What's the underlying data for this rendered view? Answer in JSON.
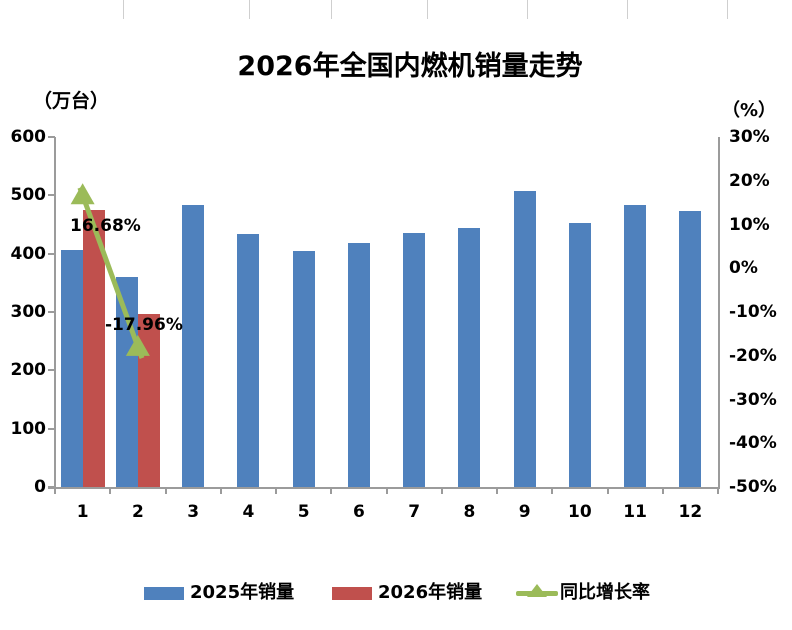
{
  "title": "2026年全国内燃机销量走势",
  "axes": {
    "left_unit": "（万台）",
    "right_unit": "（%）",
    "left_ticks": [
      "600",
      "500",
      "400",
      "300",
      "200",
      "100",
      "0"
    ],
    "right_ticks": [
      "30%",
      "20%",
      "10%",
      "0%",
      "-10%",
      "-20%",
      "-30%",
      "-40%",
      "-50%"
    ],
    "x_ticks": [
      "1",
      "2",
      "3",
      "4",
      "5",
      "6",
      "7",
      "8",
      "9",
      "10",
      "11",
      "12"
    ]
  },
  "legend": [
    {
      "label": "2025年销量",
      "swatch": "bar",
      "color": "#4F81BD"
    },
    {
      "label": "2026年销量",
      "swatch": "bar",
      "color": "#C0504D"
    },
    {
      "label": "同比增长率",
      "swatch": "line-triangle",
      "color": "#9BBB59"
    }
  ],
  "annotations": [
    {
      "text": "16.68%",
      "series": "同比增长率",
      "month": "1",
      "value": 16.68
    },
    {
      "text": "-17.96%",
      "series": "同比增长率",
      "month": "2",
      "value": -17.96
    }
  ],
  "colors": {
    "bar_2025": "#4F81BD",
    "bar_2026": "#C0504D",
    "line_growth": "#9BBB59",
    "axis": "#9B9B9B"
  },
  "chart_data": {
    "type": "combo",
    "title": "2026年全国内燃机销量走势",
    "categories": [
      "1",
      "2",
      "3",
      "4",
      "5",
      "6",
      "7",
      "8",
      "9",
      "10",
      "11",
      "12"
    ],
    "series": [
      {
        "name": "2025年销量",
        "type": "bar",
        "axis": "left",
        "color": "#4F81BD",
        "values": [
          407,
          360,
          483,
          434,
          404,
          419,
          436,
          444,
          507,
          453,
          483,
          474
        ]
      },
      {
        "name": "2026年销量",
        "type": "bar",
        "axis": "left",
        "color": "#C0504D",
        "values": [
          475,
          296,
          null,
          null,
          null,
          null,
          null,
          null,
          null,
          null,
          null,
          null
        ]
      },
      {
        "name": "同比增长率",
        "type": "line",
        "axis": "right",
        "unit": "%",
        "color": "#9BBB59",
        "values": [
          16.68,
          -17.96,
          null,
          null,
          null,
          null,
          null,
          null,
          null,
          null,
          null,
          null
        ]
      }
    ],
    "left_axis_label": "（万台）",
    "right_axis_label": "（%）",
    "left_ylim": [
      0,
      600
    ],
    "left_step": 100,
    "right_ylim": [
      -50,
      30
    ],
    "right_step": 10,
    "grid": false,
    "legend_position": "bottom"
  }
}
